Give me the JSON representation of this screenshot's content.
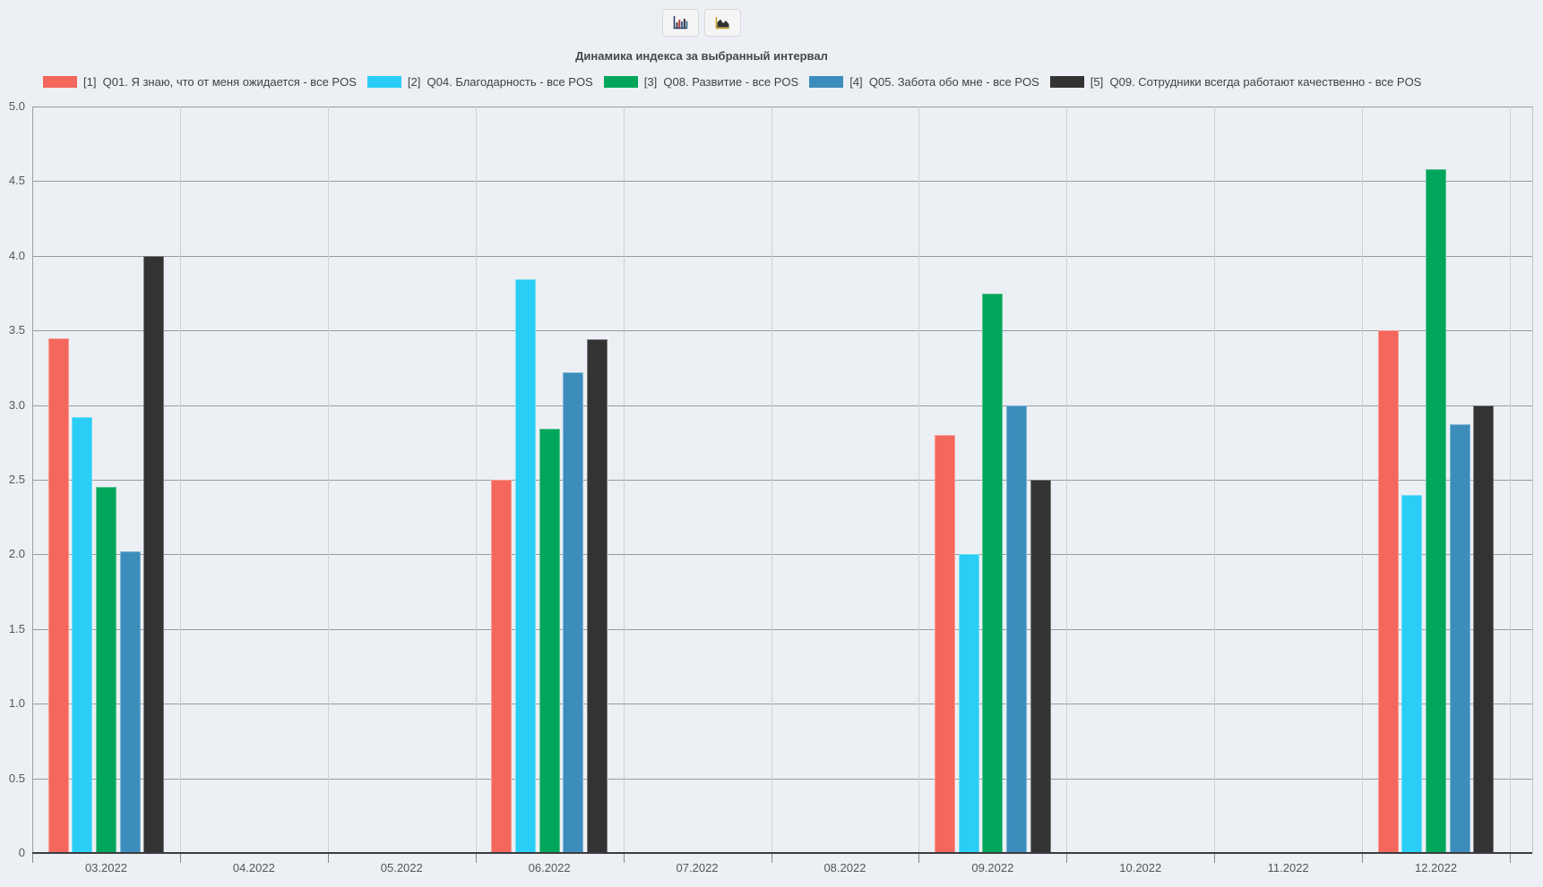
{
  "header": {
    "title": "Динамика индекса за выбранный интервал"
  },
  "toolbar": {
    "buttons": [
      {
        "icon": "bar-chart-icon"
      },
      {
        "icon": "area-chart-icon"
      }
    ]
  },
  "chart_data": {
    "type": "bar",
    "title": "Динамика индекса за выбранный интервал",
    "xlabel": "",
    "ylabel": "",
    "ylim": [
      0,
      5
    ],
    "ytick_step": 0.5,
    "yticks": [
      "0",
      "0.5",
      "1.0",
      "1.5",
      "2.0",
      "2.5",
      "3.0",
      "3.5",
      "4.0",
      "4.5",
      "5.0"
    ],
    "grid": true,
    "legend_position": "top-left",
    "categories": [
      "03.2022",
      "04.2022",
      "05.2022",
      "06.2022",
      "07.2022",
      "08.2022",
      "09.2022",
      "10.2022",
      "11.2022",
      "12.2022"
    ],
    "series": [
      {
        "name": "[1]  Q01. Я знаю, что от меня ожидается - все POS",
        "color": "#f4675c",
        "values": [
          3.45,
          null,
          null,
          2.5,
          null,
          null,
          2.8,
          null,
          null,
          3.5
        ]
      },
      {
        "name": "[2]  Q04. Благодарность - все POS",
        "color": "#29cdf5",
        "values": [
          2.92,
          null,
          null,
          3.84,
          null,
          null,
          2.0,
          null,
          null,
          2.4
        ]
      },
      {
        "name": "[3]  Q08. Развитие - все POS",
        "color": "#00a65a",
        "values": [
          2.45,
          null,
          null,
          2.84,
          null,
          null,
          3.75,
          null,
          null,
          4.58
        ]
      },
      {
        "name": "[4]  Q05. Забота обо мне - все POS",
        "color": "#3c8dbc",
        "values": [
          2.02,
          null,
          null,
          3.22,
          null,
          null,
          3.0,
          null,
          null,
          2.87
        ]
      },
      {
        "name": "[5]  Q09. Сотрудники всегда работают качественно - все POS",
        "color": "#333333",
        "values": [
          4.0,
          null,
          null,
          3.44,
          null,
          null,
          2.5,
          null,
          null,
          3.0
        ]
      }
    ]
  }
}
